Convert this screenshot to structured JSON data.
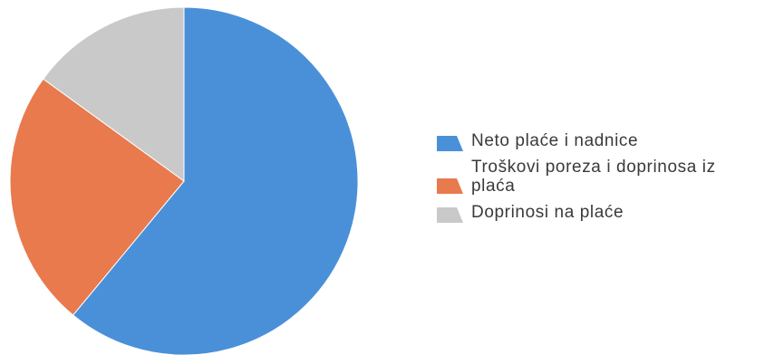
{
  "chart_data": {
    "type": "pie",
    "title": "",
    "start_angle_deg": 0,
    "direction": "clockwise",
    "legend_position": "right",
    "slices": [
      {
        "label": "Neto plaće i nadnice",
        "value": 61,
        "color": "#4a90d9"
      },
      {
        "label": "Troškovi poreza i doprinosa iz plaća",
        "value": 24,
        "color": "#e87a4e"
      },
      {
        "label": "Doprinosi na plaće",
        "value": 15,
        "color": "#c9c9c9"
      }
    ]
  },
  "legend": {
    "items": [
      {
        "label": "Neto plaće i nadnice",
        "color": "#4a90d9"
      },
      {
        "label_line1": "Troškovi poreza i doprinosa iz",
        "label_line2": "plaća",
        "color": "#e87a4e"
      },
      {
        "label": "Doprinosi na plaće",
        "color": "#c9c9c9"
      }
    ]
  }
}
